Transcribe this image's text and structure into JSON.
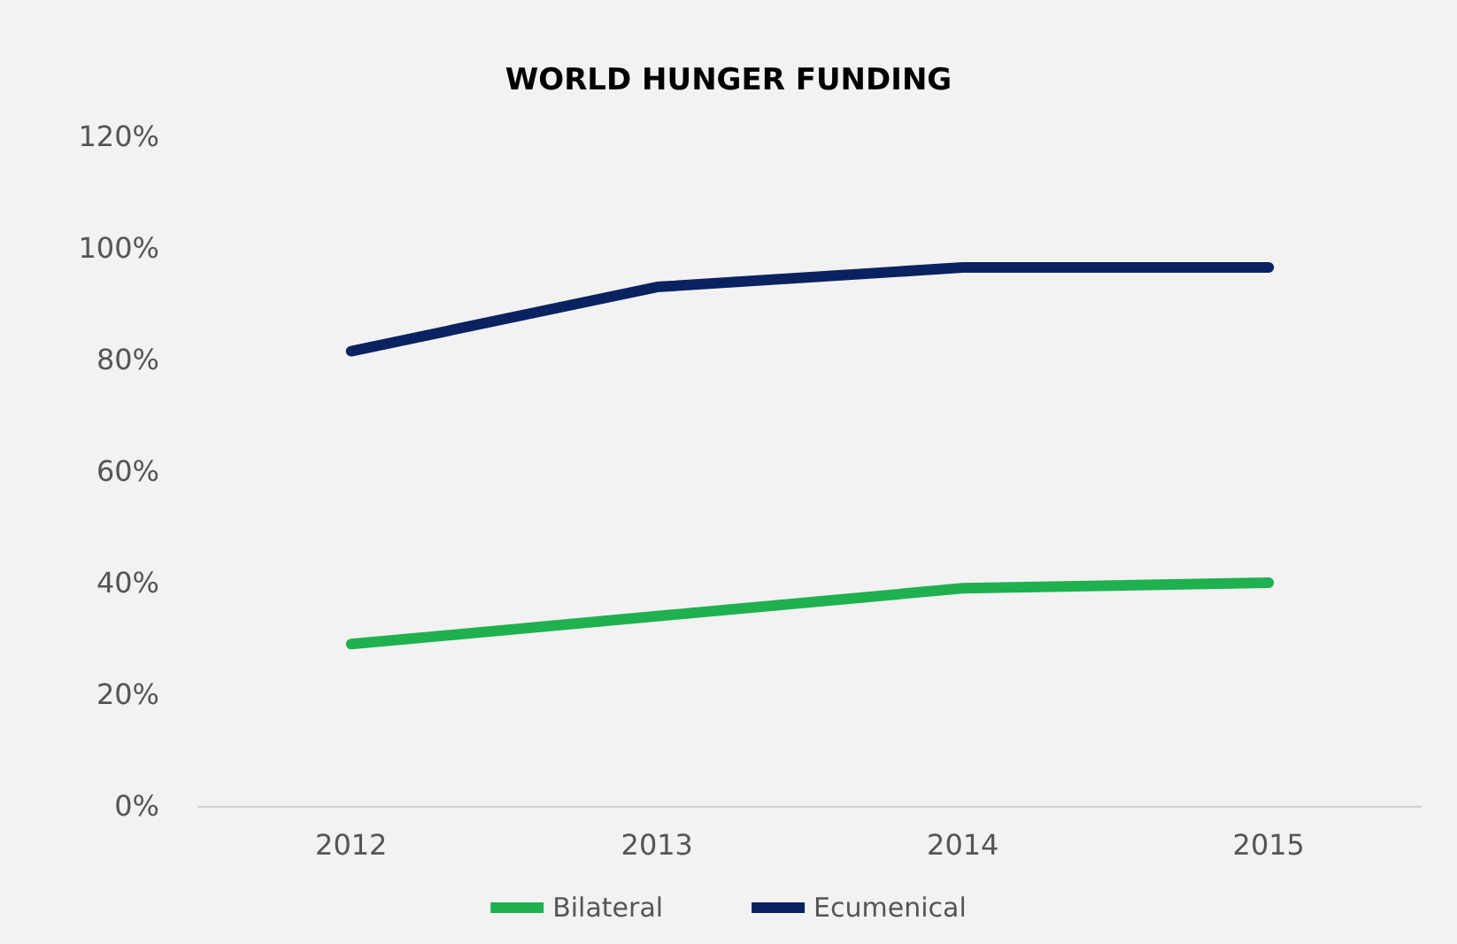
{
  "chart_data": {
    "type": "line",
    "title": "WORLD HUNGER FUNDING",
    "categories": [
      "2012",
      "2013",
      "2014",
      "2015"
    ],
    "series": [
      {
        "name": "Bilateral",
        "color": "#1fb050",
        "values": [
          29,
          34,
          39,
          40
        ]
      },
      {
        "name": "Ecumenical",
        "color": "#0b2260",
        "values": [
          81.5,
          93,
          96.5,
          96.5
        ]
      }
    ],
    "ylim": [
      0,
      120
    ],
    "yticks": [
      {
        "value": 0,
        "label": "0%"
      },
      {
        "value": 20,
        "label": "20%"
      },
      {
        "value": 40,
        "label": "40%"
      },
      {
        "value": 60,
        "label": "60%"
      },
      {
        "value": 80,
        "label": "80%"
      },
      {
        "value": 100,
        "label": "100%"
      },
      {
        "value": 120,
        "label": "120%"
      }
    ],
    "grid": false,
    "legend": "bottom",
    "marker": "none",
    "line_style": "solid"
  }
}
